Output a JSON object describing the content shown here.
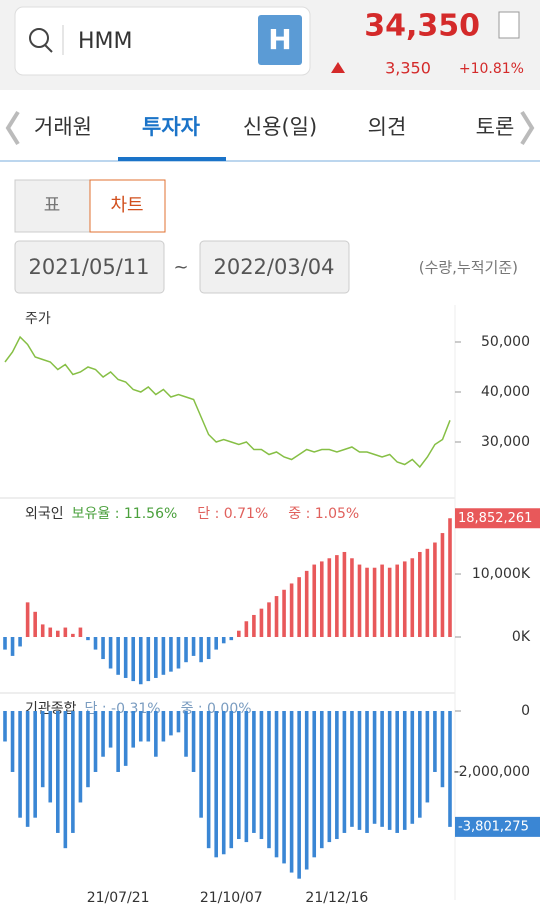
{
  "header": {
    "search_text": "HMM",
    "icon_letter": "H",
    "price": "34,350",
    "change": "3,350",
    "change_pct": "+10.81%"
  },
  "tabs": [
    "거래원",
    "투자자",
    "신용(일)",
    "의견",
    "토론"
  ],
  "view_buttons": [
    "표",
    "차트"
  ],
  "date_range": {
    "start": "2021/05/11",
    "separator": "~",
    "end": "2022/03/04",
    "note": "(수량,누적기준)"
  },
  "chart_data": [
    {
      "type": "line",
      "title": "주가",
      "color": "#86bf45",
      "values": [
        46000,
        48000,
        51000,
        49500,
        47000,
        46500,
        46000,
        44500,
        45500,
        43500,
        44000,
        45000,
        44500,
        43000,
        44000,
        42500,
        42000,
        40500,
        40000,
        41000,
        39500,
        40500,
        39000,
        39500,
        39000,
        38500,
        35000,
        31500,
        30000,
        30500,
        30000,
        29500,
        30000,
        28500,
        28500,
        27500,
        28000,
        27000,
        26500,
        27500,
        28500,
        28000,
        28500,
        28500,
        28000,
        28500,
        29000,
        28000,
        28000,
        27500,
        27000,
        27500,
        26000,
        25500,
        26500,
        25000,
        27000,
        29500,
        30500,
        34350
      ],
      "ylim": [
        19000,
        57400
      ],
      "yticks": [
        {
          "value": 30000,
          "label": "30,000"
        },
        {
          "value": 40000,
          "label": "40,000"
        },
        {
          "value": 50000,
          "label": "50,000"
        }
      ]
    },
    {
      "type": "bar",
      "title": "외국인",
      "annotations": [
        {
          "text": "보유율 : 11.56%",
          "color": "#4aa03c"
        },
        {
          "text": "단 : 0.71%",
          "color": "#e0605c"
        },
        {
          "text": "중 : 1.05%",
          "color": "#e0605c"
        }
      ],
      "colors": {
        "positive": "#e8585a",
        "negative": "#3a86d4"
      },
      "values": [
        -2000000,
        -3000000,
        -1500000,
        5500000,
        4000000,
        2000000,
        1500000,
        1000000,
        1500000,
        500000,
        1500000,
        -500000,
        -2000000,
        -3500000,
        -5000000,
        -6000000,
        -6500000,
        -7000000,
        -7500000,
        -7000000,
        -6500000,
        -6000000,
        -5500000,
        -5000000,
        -4000000,
        -3000000,
        -4000000,
        -3500000,
        -2000000,
        -1000000,
        -500000,
        1000000,
        2500000,
        3500000,
        4500000,
        5500000,
        6500000,
        7500000,
        8500000,
        9500000,
        10500000,
        11500000,
        12000000,
        12500000,
        13000000,
        13500000,
        12500000,
        11500000,
        11000000,
        11000000,
        11500000,
        11000000,
        11500000,
        12000000,
        12500000,
        13500000,
        14000000,
        15000000,
        16500000,
        18852261
      ],
      "end_label": "18,852,261",
      "ylim": [
        -8730000,
        21750000
      ],
      "yticks": [
        {
          "value": 0,
          "label": "0K"
        },
        {
          "value": 10000000,
          "label": "10,000K"
        }
      ]
    },
    {
      "type": "bar",
      "title": "기관종합",
      "annotations": [
        {
          "text": "단 : -0.31%",
          "color": "#7a9cc0"
        },
        {
          "text": "중 : 0.00%",
          "color": "#7a9cc0"
        }
      ],
      "color": "#3a86d4",
      "values": [
        -1000000,
        -2000000,
        -3500000,
        -3800000,
        -3500000,
        -2500000,
        -3000000,
        -4000000,
        -4500000,
        -4000000,
        -3000000,
        -2500000,
        -2000000,
        -1500000,
        -1200000,
        -2000000,
        -1800000,
        -1200000,
        -1000000,
        -1000000,
        -1500000,
        -1000000,
        -800000,
        -700000,
        -1500000,
        -2000000,
        -3500000,
        -4500000,
        -4800000,
        -4700000,
        -4500000,
        -4200000,
        -4300000,
        -4000000,
        -4200000,
        -4500000,
        -4800000,
        -5000000,
        -5300000,
        -5500000,
        -5200000,
        -4800000,
        -4500000,
        -4300000,
        -4200000,
        -4000000,
        -3800000,
        -3900000,
        -4000000,
        -3700000,
        -3800000,
        -3900000,
        -4000000,
        -3900000,
        -3700000,
        -3500000,
        -3000000,
        -2000000,
        -2500000,
        -3801275
      ],
      "end_label": "-3,801,275",
      "categories": [
        null,
        null,
        null,
        null,
        null,
        null,
        null,
        null,
        null,
        null,
        null,
        null,
        null,
        null,
        null,
        "21/07/21",
        null,
        null,
        null,
        null,
        null,
        null,
        null,
        null,
        null,
        null,
        null,
        null,
        null,
        null,
        "21/10/07",
        null,
        null,
        null,
        null,
        null,
        null,
        null,
        null,
        null,
        null,
        null,
        null,
        null,
        "21/12/16",
        null,
        null,
        null,
        null,
        null,
        null,
        null,
        null,
        null,
        null,
        null,
        null,
        null,
        null,
        null
      ],
      "ylim": [
        -6200000,
        525000
      ],
      "yticks": [
        0,
        {
          "value": -2000000,
          "label": "-2,000,000"
        }
      ]
    }
  ]
}
